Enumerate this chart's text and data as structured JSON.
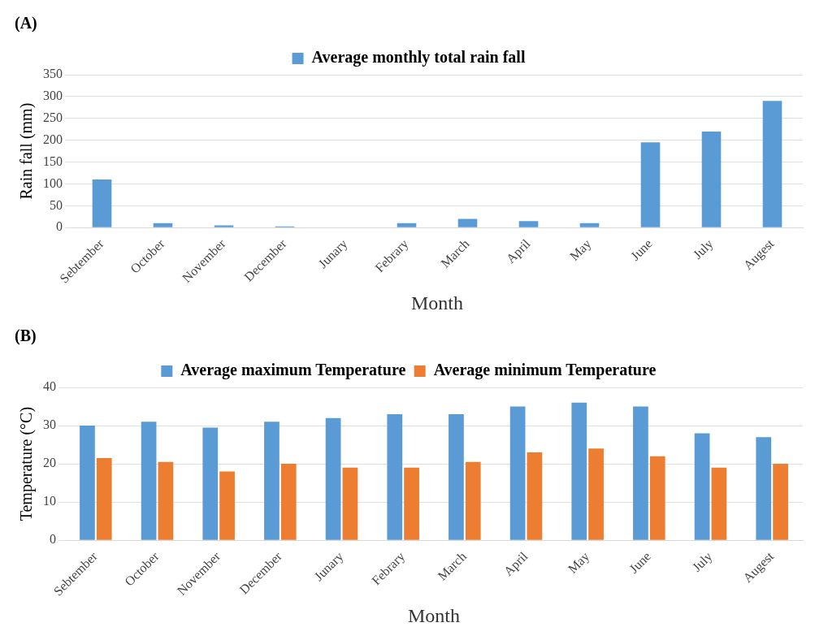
{
  "chart_data": [
    {
      "type": "bar",
      "title": "(A)",
      "xlabel": "Month",
      "ylabel": "Rain fall (mm)",
      "categories": [
        "Sebtember",
        "October",
        "November",
        "December",
        "Junary",
        "Febrary",
        "March",
        "April",
        "May",
        "June",
        "July",
        "Augest"
      ],
      "series": [
        {
          "name": "Average monthly total rain fall",
          "color": "#5b9bd5",
          "values": [
            110,
            10,
            5,
            3,
            0,
            10,
            20,
            15,
            10,
            195,
            220,
            290
          ]
        }
      ],
      "ylim": [
        0,
        350
      ],
      "yticks": [
        0,
        50,
        100,
        150,
        200,
        250,
        300,
        350
      ],
      "grid": "y",
      "legend": "top"
    },
    {
      "type": "bar",
      "title": "(B)",
      "xlabel": "Month",
      "ylabel": "Temperature (°C)",
      "categories": [
        "Sebtember",
        "October",
        "November",
        "December",
        "Junary",
        "Febrary",
        "March",
        "April",
        "May",
        "June",
        "July",
        "Augest"
      ],
      "series": [
        {
          "name": "Average maximum Temperature",
          "color": "#5b9bd5",
          "values": [
            30,
            31,
            29.5,
            31,
            32,
            33,
            33,
            35,
            36,
            35,
            28,
            27
          ]
        },
        {
          "name": "Average minimum Temperature",
          "color": "#ed7d31",
          "values": [
            21.5,
            20.5,
            18,
            20,
            19,
            19,
            20.5,
            23,
            24,
            22,
            19,
            20
          ]
        }
      ],
      "ylim": [
        0,
        40
      ],
      "yticks": [
        0,
        10,
        20,
        30,
        40
      ],
      "grid": "y",
      "legend": "top"
    }
  ]
}
